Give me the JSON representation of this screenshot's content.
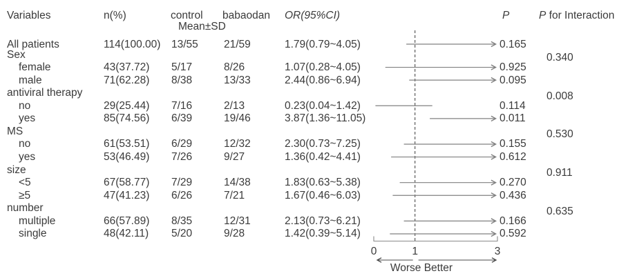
{
  "header": {
    "variables": "Variables",
    "n_pct": "n(%)",
    "control": "control",
    "babaodan": "babaodan",
    "mean_sd": "Mean±SD",
    "or_ci": "OR(95%CI)",
    "p": "P",
    "p_for_interaction": "P for Interaction"
  },
  "colors": {
    "text": "#3a3a3a",
    "ci_line": "#808080",
    "reference_line": "#4a4a4a",
    "axis": "#8a8a8a"
  },
  "chart_data": {
    "type": "forest",
    "x_axis": {
      "min": 0,
      "max": 3,
      "ticks": [
        0,
        1,
        3
      ],
      "reference": 1
    },
    "direction_label": "Worse Better",
    "rows": [
      {
        "label": "All patients",
        "indent": false,
        "group": false,
        "n": "114(100.00)",
        "control": "13/55",
        "babaodan": "21/59",
        "or_ci": "1.79(0.79~4.05)",
        "or": 1.79,
        "low": 0.79,
        "high": 4.05,
        "p": "0.165"
      },
      {
        "label": "Sex",
        "indent": false,
        "group": true,
        "p_interaction": "0.340"
      },
      {
        "label": "female",
        "indent": true,
        "group": false,
        "n": "43(37.72)",
        "control": "5/17",
        "babaodan": "8/26",
        "or_ci": "1.07(0.28~4.05)",
        "or": 1.07,
        "low": 0.28,
        "high": 4.05,
        "p": "0.925"
      },
      {
        "label": "male",
        "indent": true,
        "group": false,
        "n": "71(62.28)",
        "control": "8/38",
        "babaodan": "13/33",
        "or_ci": "2.44(0.86~6.94)",
        "or": 2.44,
        "low": 0.86,
        "high": 6.94,
        "p": "0.095"
      },
      {
        "label": "antiviral therapy",
        "indent": false,
        "group": true,
        "p_interaction": "0.008"
      },
      {
        "label": "no",
        "indent": true,
        "group": false,
        "n": "29(25.44)",
        "control": "7/16",
        "babaodan": "2/13",
        "or_ci": "0.23(0.04~1.42)",
        "or": 0.23,
        "low": 0.04,
        "high": 1.42,
        "p": "0.114"
      },
      {
        "label": "yes",
        "indent": true,
        "group": false,
        "n": "85(74.56)",
        "control": "6/39",
        "babaodan": "19/46",
        "or_ci": "3.87(1.36~11.05)",
        "or": 3.87,
        "low": 1.36,
        "high": 11.05,
        "p": "0.011"
      },
      {
        "label": "MS",
        "indent": false,
        "group": true,
        "p_interaction": "0.530"
      },
      {
        "label": "no",
        "indent": true,
        "group": false,
        "n": "61(53.51)",
        "control": "6/29",
        "babaodan": "12/32",
        "or_ci": "2.30(0.73~7.25)",
        "or": 2.3,
        "low": 0.73,
        "high": 7.25,
        "p": "0.155"
      },
      {
        "label": "yes",
        "indent": true,
        "group": false,
        "n": "53(46.49)",
        "control": "7/26",
        "babaodan": "9/27",
        "or_ci": "1.36(0.42~4.41)",
        "or": 1.36,
        "low": 0.42,
        "high": 4.41,
        "p": "0.612"
      },
      {
        "label": "size",
        "indent": false,
        "group": true,
        "p_interaction": "0.911"
      },
      {
        "label": "<5",
        "indent": true,
        "group": false,
        "n": "67(58.77)",
        "control": "7/29",
        "babaodan": "14/38",
        "or_ci": "1.83(0.63~5.38)",
        "or": 1.83,
        "low": 0.63,
        "high": 5.38,
        "p": "0.270"
      },
      {
        "label": "≥5",
        "indent": true,
        "group": false,
        "n": "47(41.23)",
        "control": "6/26",
        "babaodan": "7/21",
        "or_ci": "1.67(0.46~6.03)",
        "or": 1.67,
        "low": 0.46,
        "high": 6.03,
        "p": "0.436"
      },
      {
        "label": "number",
        "indent": false,
        "group": true,
        "p_interaction": "0.635"
      },
      {
        "label": "multiple",
        "indent": true,
        "group": false,
        "n": "66(57.89)",
        "control": "8/35",
        "babaodan": "12/31",
        "or_ci": "2.13(0.73~6.21)",
        "or": 2.13,
        "low": 0.73,
        "high": 6.21,
        "p": "0.166"
      },
      {
        "label": "single",
        "indent": true,
        "group": false,
        "n": "48(42.11)",
        "control": "5/20",
        "babaodan": "9/28",
        "or_ci": "1.42(0.39~5.14)",
        "or": 1.42,
        "low": 0.39,
        "high": 5.14,
        "p": "0.592"
      }
    ]
  }
}
